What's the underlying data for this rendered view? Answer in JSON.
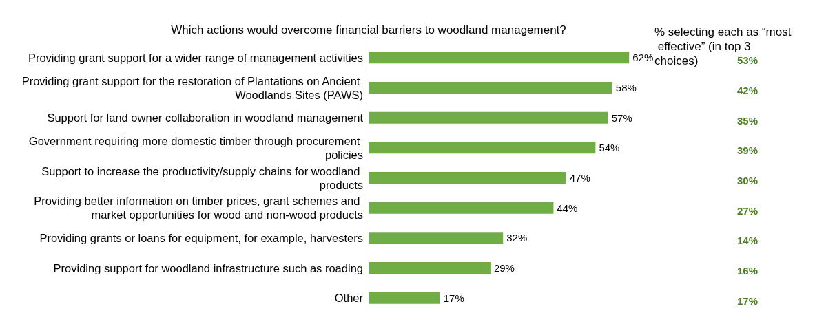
{
  "chart_data": {
    "type": "bar",
    "orientation": "horizontal",
    "title": "Which actions would overcome financial barriers to woodland management?",
    "categories": [
      "Providing grant support for a wider range of management activities",
      "Providing grant support for the restoration of Plantations on Ancient Woodlands Sites (PAWS)",
      "Support for land owner collaboration in woodland management",
      "Government requiring more domestic timber through procurement policies",
      "Support to increase the productivity/supply chains for woodland products",
      "Providing better information on timber prices, grant schemes and market opportunities for wood and non-wood products",
      "Providing grants or loans for equipment, for example, harvesters",
      "Providing support for woodland infrastructure such as roading",
      "Other"
    ],
    "values": [
      62,
      58,
      57,
      54,
      47,
      44,
      32,
      29,
      17
    ],
    "value_labels": [
      "62%",
      "58%",
      "57%",
      "54%",
      "47%",
      "44%",
      "32%",
      "29%",
      "17%"
    ],
    "color": "#70ad47",
    "annotations": [
      "% selecting each as “most effective” (in top 3 choices)",
      "53%",
      "42%",
      "35%",
      "39%",
      "30%",
      "27%",
      "14%",
      "16%",
      "17%"
    ]
  }
}
